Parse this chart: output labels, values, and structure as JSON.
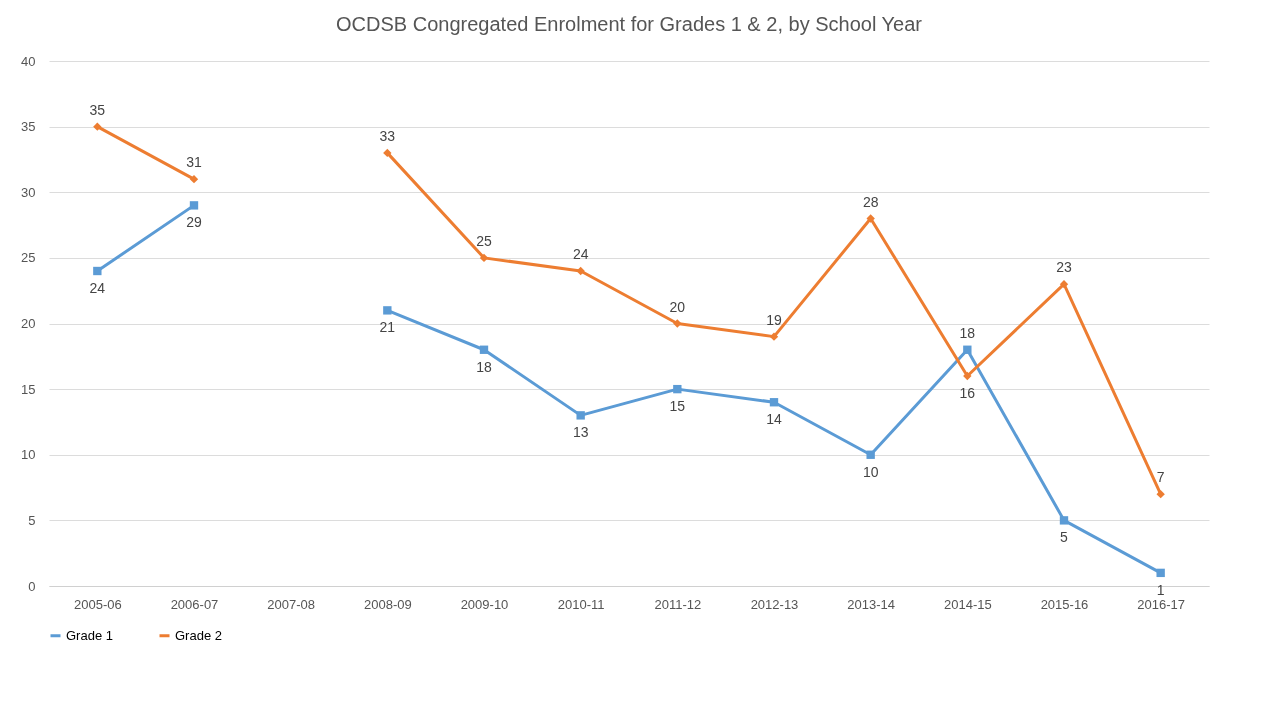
{
  "chart_data": {
    "type": "line",
    "title": "OCDSB Congregated Enrolment for Grades 1 & 2, by School Year",
    "categories": [
      "2005-06",
      "2006-07",
      "2007-08",
      "2008-09",
      "2009-10",
      "2010-11",
      "2011-12",
      "2012-13",
      "2013-14",
      "2014-15",
      "2015-16",
      "2016-17"
    ],
    "series": [
      {
        "name": "Grade 1",
        "color": "#5b9bd5",
        "marker": "square",
        "values": [
          24,
          29,
          null,
          21,
          18,
          13,
          15,
          14,
          10,
          18,
          5,
          1
        ]
      },
      {
        "name": "Grade 2",
        "color": "#ed7d31",
        "marker": "diamond",
        "values": [
          35,
          31,
          null,
          33,
          25,
          24,
          20,
          19,
          28,
          16,
          23,
          7
        ]
      }
    ],
    "ylim": [
      0,
      40
    ],
    "yticks": [
      0,
      5,
      10,
      15,
      20,
      25,
      30,
      35,
      40
    ],
    "grid": "y",
    "legend": "bottom",
    "data_labels": true,
    "line_style": "solid"
  }
}
